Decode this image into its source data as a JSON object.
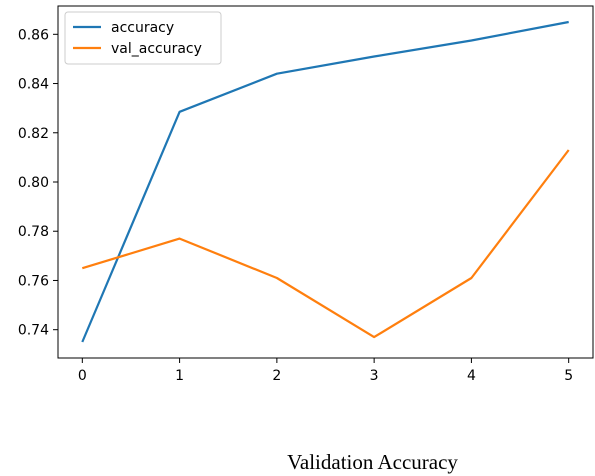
{
  "caption": "Validation Accuracy",
  "chart_data": {
    "type": "line",
    "x": [
      0,
      1,
      2,
      3,
      4,
      5
    ],
    "series": [
      {
        "name": "accuracy",
        "color": "#1f77b4",
        "values": [
          0.735,
          0.8285,
          0.844,
          0.851,
          0.8575,
          0.865
        ]
      },
      {
        "name": "val_accuracy",
        "color": "#ff7f0e",
        "values": [
          0.765,
          0.777,
          0.761,
          0.737,
          0.761,
          0.813
        ]
      }
    ],
    "xticks": [
      "0",
      "1",
      "2",
      "3",
      "4",
      "5"
    ],
    "yticks": [
      "0.74",
      "0.76",
      "0.78",
      "0.80",
      "0.82",
      "0.84",
      "0.86"
    ],
    "ytick_values": [
      0.74,
      0.76,
      0.78,
      0.8,
      0.82,
      0.84,
      0.86
    ],
    "xlim": [
      -0.25,
      5.25
    ],
    "ylim": [
      0.7285,
      0.8715
    ],
    "legend_position": "upper-left",
    "grid": false,
    "title": "",
    "xlabel": "",
    "ylabel": ""
  }
}
